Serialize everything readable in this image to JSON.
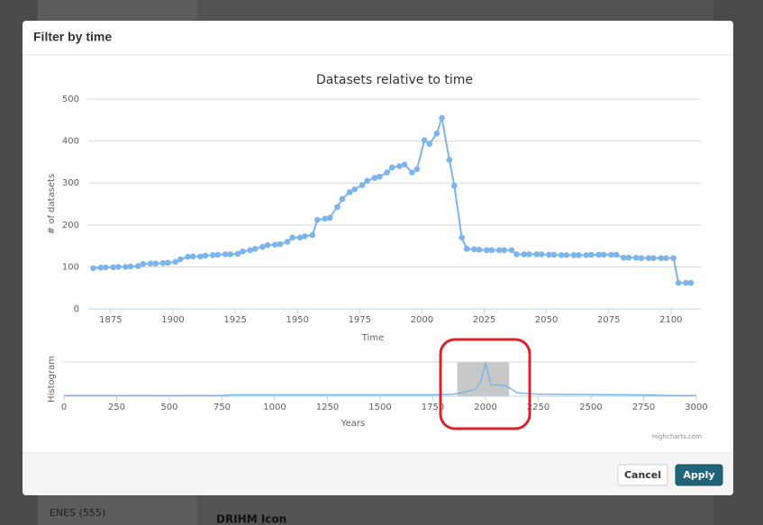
{
  "dialog": {
    "title": "Filter by time",
    "cancel": "Cancel",
    "apply": "Apply",
    "credit": "Highcharts.com"
  },
  "background": {
    "sidebar_item": "ENES (555)",
    "heading": "DRIHM Icon"
  },
  "chart_data": [
    {
      "type": "line",
      "title": "Datasets relative to time",
      "x_label": "Time",
      "y_label": "# of datasets",
      "x": [
        1868,
        1871,
        1873,
        1876,
        1878,
        1881,
        1883,
        1886,
        1888,
        1891,
        1893,
        1896,
        1898,
        1901,
        1903,
        1906,
        1908,
        1911,
        1913,
        1916,
        1918,
        1921,
        1923,
        1926,
        1928,
        1931,
        1933,
        1936,
        1938,
        1941,
        1943,
        1946,
        1948,
        1951,
        1953,
        1956,
        1958,
        1961,
        1963,
        1966,
        1968,
        1971,
        1973,
        1976,
        1978,
        1981,
        1983,
        1986,
        1988,
        1991,
        1993,
        1996,
        1998,
        2001,
        2003,
        2006,
        2008,
        2011,
        2013,
        2016,
        2018,
        2021,
        2023,
        2026,
        2028,
        2031,
        2033,
        2036,
        2038,
        2041,
        2043,
        2046,
        2048,
        2051,
        2053,
        2056,
        2058,
        2061,
        2063,
        2066,
        2068,
        2071,
        2073,
        2076,
        2078,
        2081,
        2083,
        2086,
        2088,
        2091,
        2093,
        2096,
        2098,
        2101,
        2103,
        2106,
        2108
      ],
      "series": [
        {
          "color": "#7cb5ec",
          "values": [
            97,
            98,
            99,
            99,
            100,
            100,
            101,
            102,
            107,
            108,
            108,
            109,
            110,
            112,
            118,
            124,
            125,
            125,
            127,
            128,
            129,
            130,
            130,
            131,
            137,
            140,
            143,
            148,
            152,
            153,
            154,
            160,
            170,
            170,
            173,
            176,
            212,
            215,
            217,
            243,
            262,
            278,
            285,
            295,
            305,
            312,
            315,
            325,
            337,
            340,
            344,
            325,
            333,
            402,
            393,
            418,
            455,
            355,
            293,
            170,
            143,
            142,
            141,
            140,
            140,
            140,
            140,
            140,
            130,
            130,
            130,
            130,
            130,
            129,
            129,
            128,
            128,
            128,
            128,
            128,
            129,
            129,
            129,
            129,
            129,
            122,
            122,
            122,
            121,
            121,
            121,
            121,
            121,
            121,
            62,
            62,
            62
          ]
        }
      ],
      "xlim": [
        1866,
        2112
      ],
      "ylim": [
        0,
        500
      ],
      "xticks": [
        1875,
        1900,
        1925,
        1950,
        1975,
        2000,
        2025,
        2050,
        2075,
        2100
      ],
      "yticks": [
        0,
        100,
        200,
        300,
        400,
        500
      ],
      "grid": true
    },
    {
      "type": "line",
      "x_label": "Years",
      "y_label": "Histogram",
      "x": [
        0,
        750,
        800,
        1750,
        1850,
        1900,
        1950,
        1975,
        2000,
        2025,
        2100,
        2150,
        2250,
        2700,
        2900,
        3000
      ],
      "series": [
        {
          "color": "#7cb5ec",
          "values": [
            10,
            10,
            20,
            20,
            30,
            60,
            100,
            200,
            480,
            170,
            150,
            50,
            30,
            20,
            10,
            10
          ]
        }
      ],
      "xlim": [
        0,
        3000
      ],
      "ylim": [
        0,
        500
      ],
      "xticks": [
        0,
        250,
        500,
        750,
        1000,
        1250,
        1500,
        1750,
        2000,
        2250,
        2500,
        2750,
        3000
      ]
    }
  ]
}
